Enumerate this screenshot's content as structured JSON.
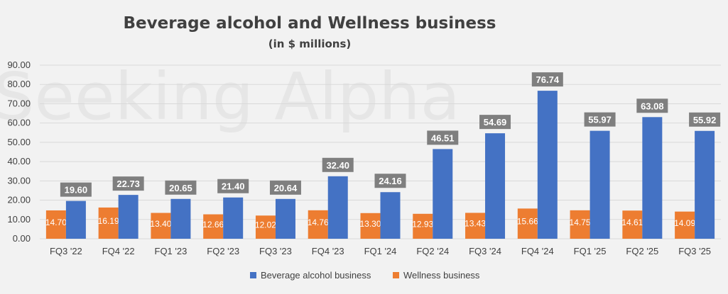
{
  "watermark": "Seeking Alpha",
  "chart_data": {
    "type": "bar",
    "title": "Beverage alcohol and Wellness business",
    "subtitle": "(in $ millions)",
    "categories": [
      "FQ3 '22",
      "FQ4 '22",
      "FQ1 '23",
      "FQ2 '23",
      "FQ3 '23",
      "FQ4 '23",
      "FQ1 '24",
      "FQ2 '24",
      "FQ3 '24",
      "FQ4 '24",
      "FQ1 '25",
      "FQ2 '25",
      "FQ3 '25"
    ],
    "series": [
      {
        "name": "Beverage alcohol business",
        "color": "#4472c4",
        "values": [
          19.6,
          22.73,
          20.65,
          21.4,
          20.64,
          32.4,
          24.16,
          46.51,
          54.69,
          76.74,
          55.97,
          63.08,
          55.92
        ],
        "labels": [
          "19.60",
          "22.73",
          "20.65",
          "21.40",
          "20.64",
          "32.40",
          "24.16",
          "46.51",
          "54.69",
          "76.74",
          "55.97",
          "63.08",
          "55.92"
        ]
      },
      {
        "name": "Wellness business",
        "color": "#ed7d31",
        "values": [
          14.7,
          16.19,
          13.4,
          12.66,
          12.02,
          14.76,
          13.3,
          12.93,
          13.43,
          15.66,
          14.75,
          14.61,
          14.09
        ],
        "labels": [
          "14.70",
          "16.19",
          "13.40",
          "12.66",
          "12.02",
          "14.76",
          "13.30",
          "12.93",
          "13.43",
          "15.66",
          "14.75",
          "14.61",
          "14.09"
        ]
      }
    ],
    "ylim": [
      0,
      90
    ],
    "yticks": [
      "0.00",
      "10.00",
      "20.00",
      "30.00",
      "40.00",
      "50.00",
      "60.00",
      "70.00",
      "80.00",
      "90.00"
    ],
    "xlabel": "",
    "ylabel": "",
    "grid": true,
    "legend_position": "bottom"
  }
}
